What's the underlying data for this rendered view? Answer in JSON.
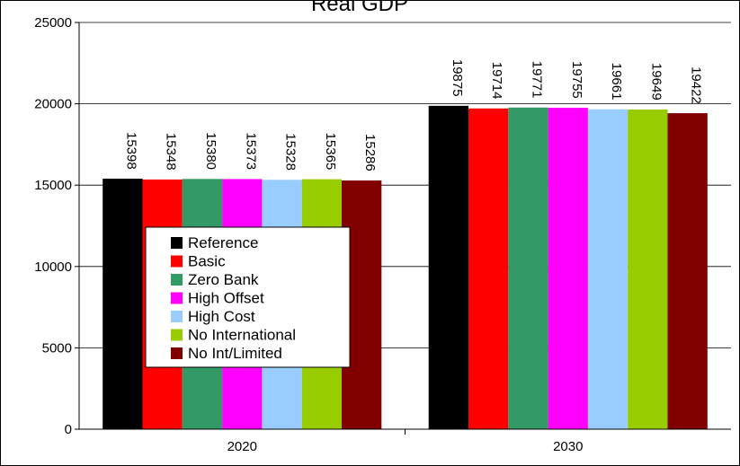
{
  "chart_data": {
    "type": "bar",
    "title": "Real GDP",
    "xlabel": "",
    "ylabel": "",
    "categories": [
      "2020",
      "2030"
    ],
    "ylim": [
      0,
      25000
    ],
    "yticks": [
      0,
      5000,
      10000,
      15000,
      20000,
      25000
    ],
    "grid": true,
    "legend_position": "inside-lower-left",
    "series": [
      {
        "name": "Reference",
        "color": "#000000",
        "values": [
          15398,
          19875
        ]
      },
      {
        "name": "Basic",
        "color": "#ff0000",
        "values": [
          15348,
          19714
        ]
      },
      {
        "name": "Zero Bank",
        "color": "#339966",
        "values": [
          15380,
          19771
        ]
      },
      {
        "name": "High Offset",
        "color": "#ff00ff",
        "values": [
          15373,
          19755
        ]
      },
      {
        "name": "High Cost",
        "color": "#99ccff",
        "values": [
          15328,
          19661
        ]
      },
      {
        "name": "No International",
        "color": "#99cc00",
        "values": [
          15365,
          19649
        ]
      },
      {
        "name": "No Int/Limited",
        "color": "#800000",
        "values": [
          15286,
          19422
        ]
      }
    ]
  }
}
